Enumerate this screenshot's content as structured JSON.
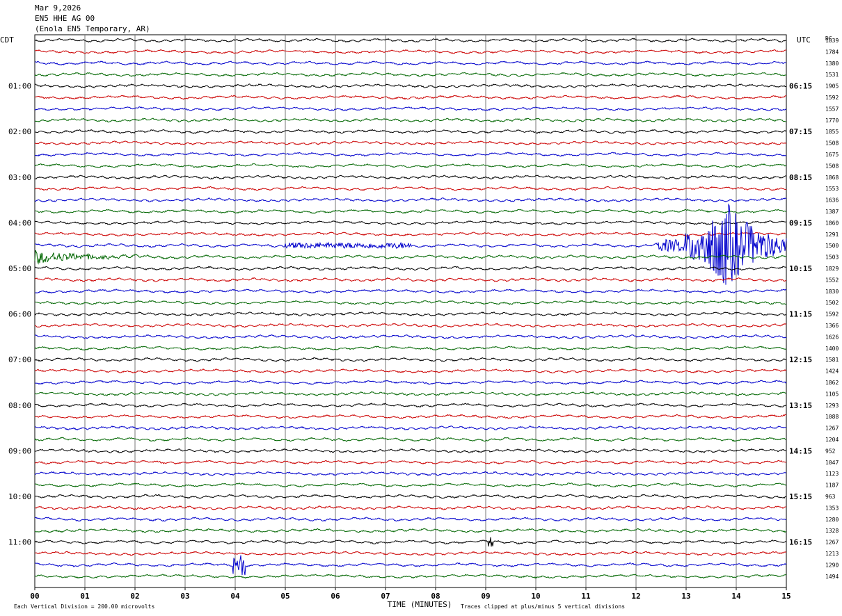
{
  "header": {
    "date": "Mar 9,2026",
    "station": "EN5 HHE AG 00",
    "location": "(Enola EN5 Temporary, AR)"
  },
  "chart_data": {
    "type": "line",
    "title": "Mar 9,2026 EN5 HHE AG 00 (Enola EN5 Temporary, AR)",
    "xlabel": "TIME (MINUTES)",
    "xlim": [
      0,
      15
    ],
    "x_ticks": [
      "00",
      "01",
      "02",
      "03",
      "04",
      "05",
      "06",
      "07",
      "08",
      "09",
      "10",
      "11",
      "12",
      "13",
      "14",
      "15"
    ],
    "left_axis_title": "CDT",
    "right_axis_title": "UTC",
    "dc_label": "DC",
    "left_hour_labels": [
      "01:00",
      "02:00",
      "03:00",
      "04:00",
      "05:00",
      "06:00",
      "07:00",
      "08:00",
      "09:00",
      "10:00",
      "11:00"
    ],
    "right_hour_labels": [
      "06:15",
      "07:15",
      "08:15",
      "09:15",
      "10:15",
      "11:15",
      "12:15",
      "13:15",
      "14:15",
      "15:15",
      "16:15"
    ],
    "trace_colors": [
      "#000000",
      "#cc0000",
      "#0000cc",
      "#006600"
    ],
    "trace_count": 48,
    "dc_offsets": [
      "1839",
      "1784",
      "1380",
      "1531",
      "1905",
      "1592",
      "1557",
      "1770",
      "1855",
      "1508",
      "1675",
      "1508",
      "1868",
      "1553",
      "1636",
      "1387",
      "1860",
      "1291",
      "1500",
      "1503",
      "1829",
      "1552",
      "1830",
      "1502",
      "1592",
      "1366",
      "1626",
      "1400",
      "1581",
      "1424",
      "1862",
      "1105",
      "1293",
      "1088",
      "1267",
      "1204",
      "952",
      "1047",
      "1123",
      "1187",
      "963",
      "1353",
      "1280",
      "1328",
      "1267",
      "1213",
      "1290",
      "1494"
    ],
    "events": [
      {
        "trace": 18,
        "start_min": 12.4,
        "end_min": 15.0,
        "peak_min": 13.8,
        "label": "large event on blue trace"
      },
      {
        "trace": 19,
        "start_min": 0.0,
        "end_min": 3.0,
        "peak_min": 0.3,
        "label": "decaying coda on green trace"
      },
      {
        "trace": 18,
        "start_min": 5.0,
        "end_min": 7.5,
        "peak_min": 6.0,
        "label": "small arrival on blue trace"
      },
      {
        "trace": 46,
        "start_min": 3.95,
        "end_min": 4.2,
        "peak_min": 4.05,
        "label": "spike on blue trace"
      },
      {
        "trace": 44,
        "start_min": 9.05,
        "end_min": 9.15,
        "peak_min": 9.1,
        "label": "blip on black trace"
      }
    ],
    "grid": true
  },
  "footer": {
    "scale_note": "Each Vertical Division =  200.00 microvolts",
    "clip_note": "Traces clipped at plus/minus 5 vertical divisions"
  }
}
